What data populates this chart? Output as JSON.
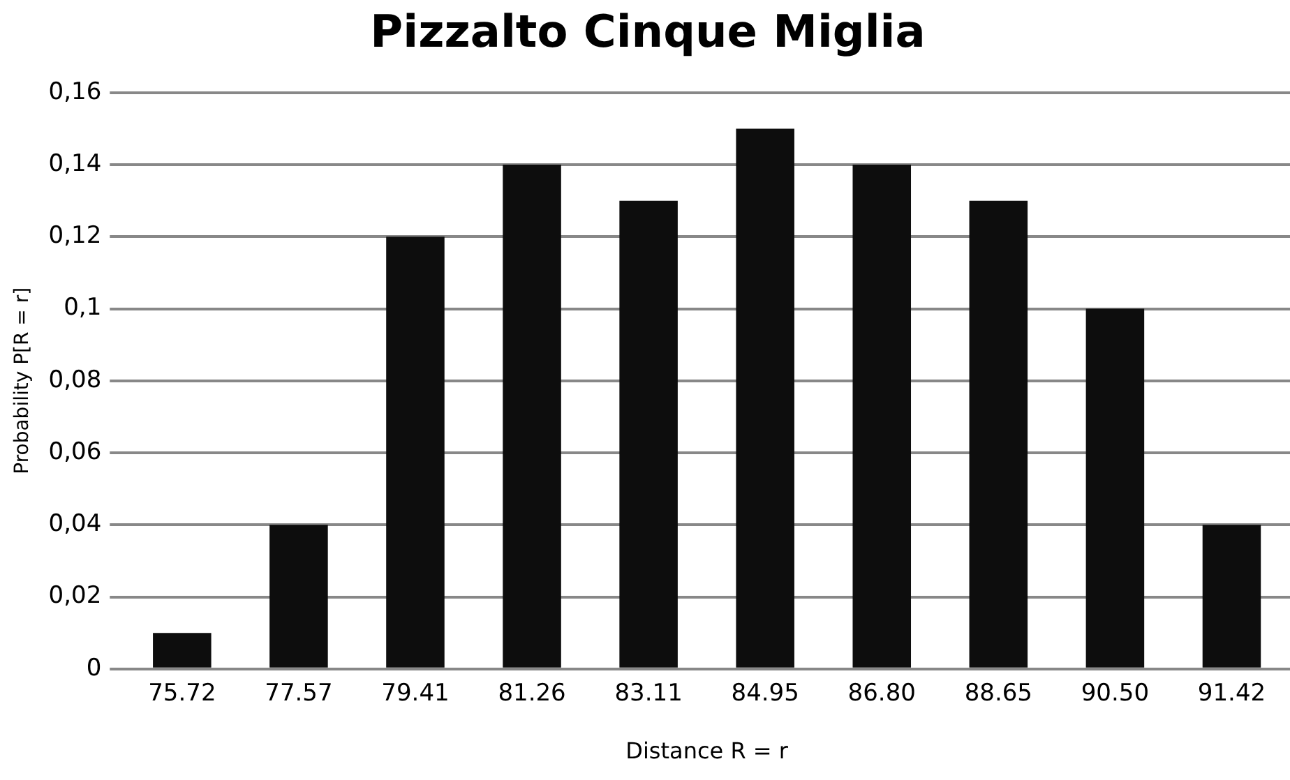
{
  "chart_data": {
    "type": "bar",
    "title": "Pizzalto Cinque Miglia",
    "xlabel": "Distance R = r",
    "ylabel": "Probability P[R = r]",
    "categories": [
      "75.72",
      "77.57",
      "79.41",
      "81.26",
      "83.11",
      "84.95",
      "86.80",
      "88.65",
      "90.50",
      "91.42"
    ],
    "values": [
      0.01,
      0.04,
      0.12,
      0.14,
      0.13,
      0.15,
      0.14,
      0.13,
      0.1,
      0.04
    ],
    "color": "#0d0d0d",
    "ylim": [
      0,
      0.16
    ],
    "yticks": [
      {
        "value": 0,
        "label": "0"
      },
      {
        "value": 0.02,
        "label": "0,02"
      },
      {
        "value": 0.04,
        "label": "0,04"
      },
      {
        "value": 0.06,
        "label": "0,06"
      },
      {
        "value": 0.08,
        "label": "0,08"
      },
      {
        "value": 0.1,
        "label": "0,1"
      },
      {
        "value": 0.12,
        "label": "0,12"
      },
      {
        "value": 0.14,
        "label": "0,14"
      },
      {
        "value": 0.16,
        "label": "0,16"
      }
    ],
    "grid": "y",
    "legend": false
  }
}
